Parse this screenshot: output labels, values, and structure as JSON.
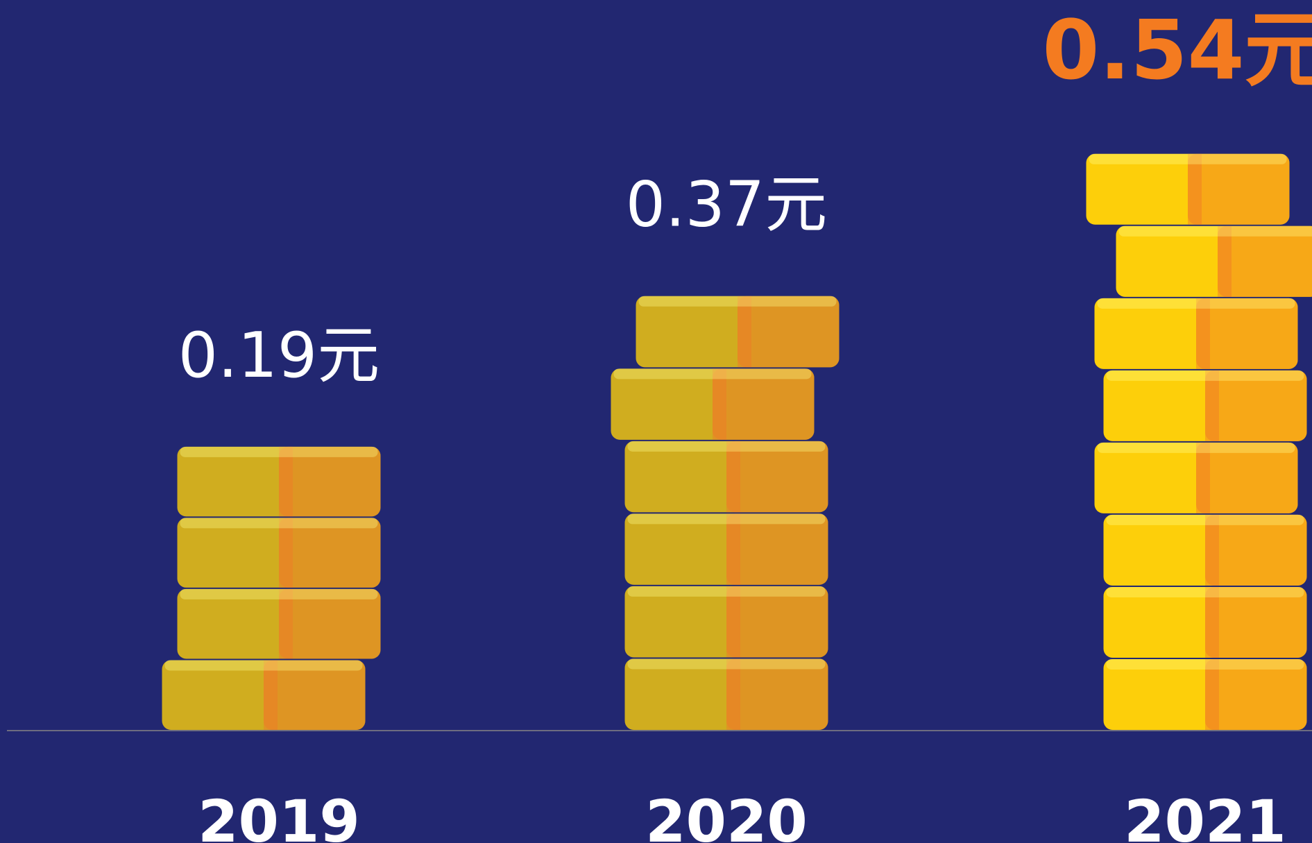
{
  "chart_data": {
    "type": "pictorial-bar",
    "categories": [
      "2019",
      "2020",
      "2021"
    ],
    "values": [
      0.19,
      0.37,
      0.54
    ],
    "value_labels": [
      "0.19元",
      "0.37元",
      "0.54元"
    ],
    "colors": [
      "#d0ad1f",
      "#d0ad1f",
      "#fdcf0a"
    ],
    "label_colors": [
      "#ffffff",
      "#ffffff",
      "#f47b20"
    ]
  }
}
